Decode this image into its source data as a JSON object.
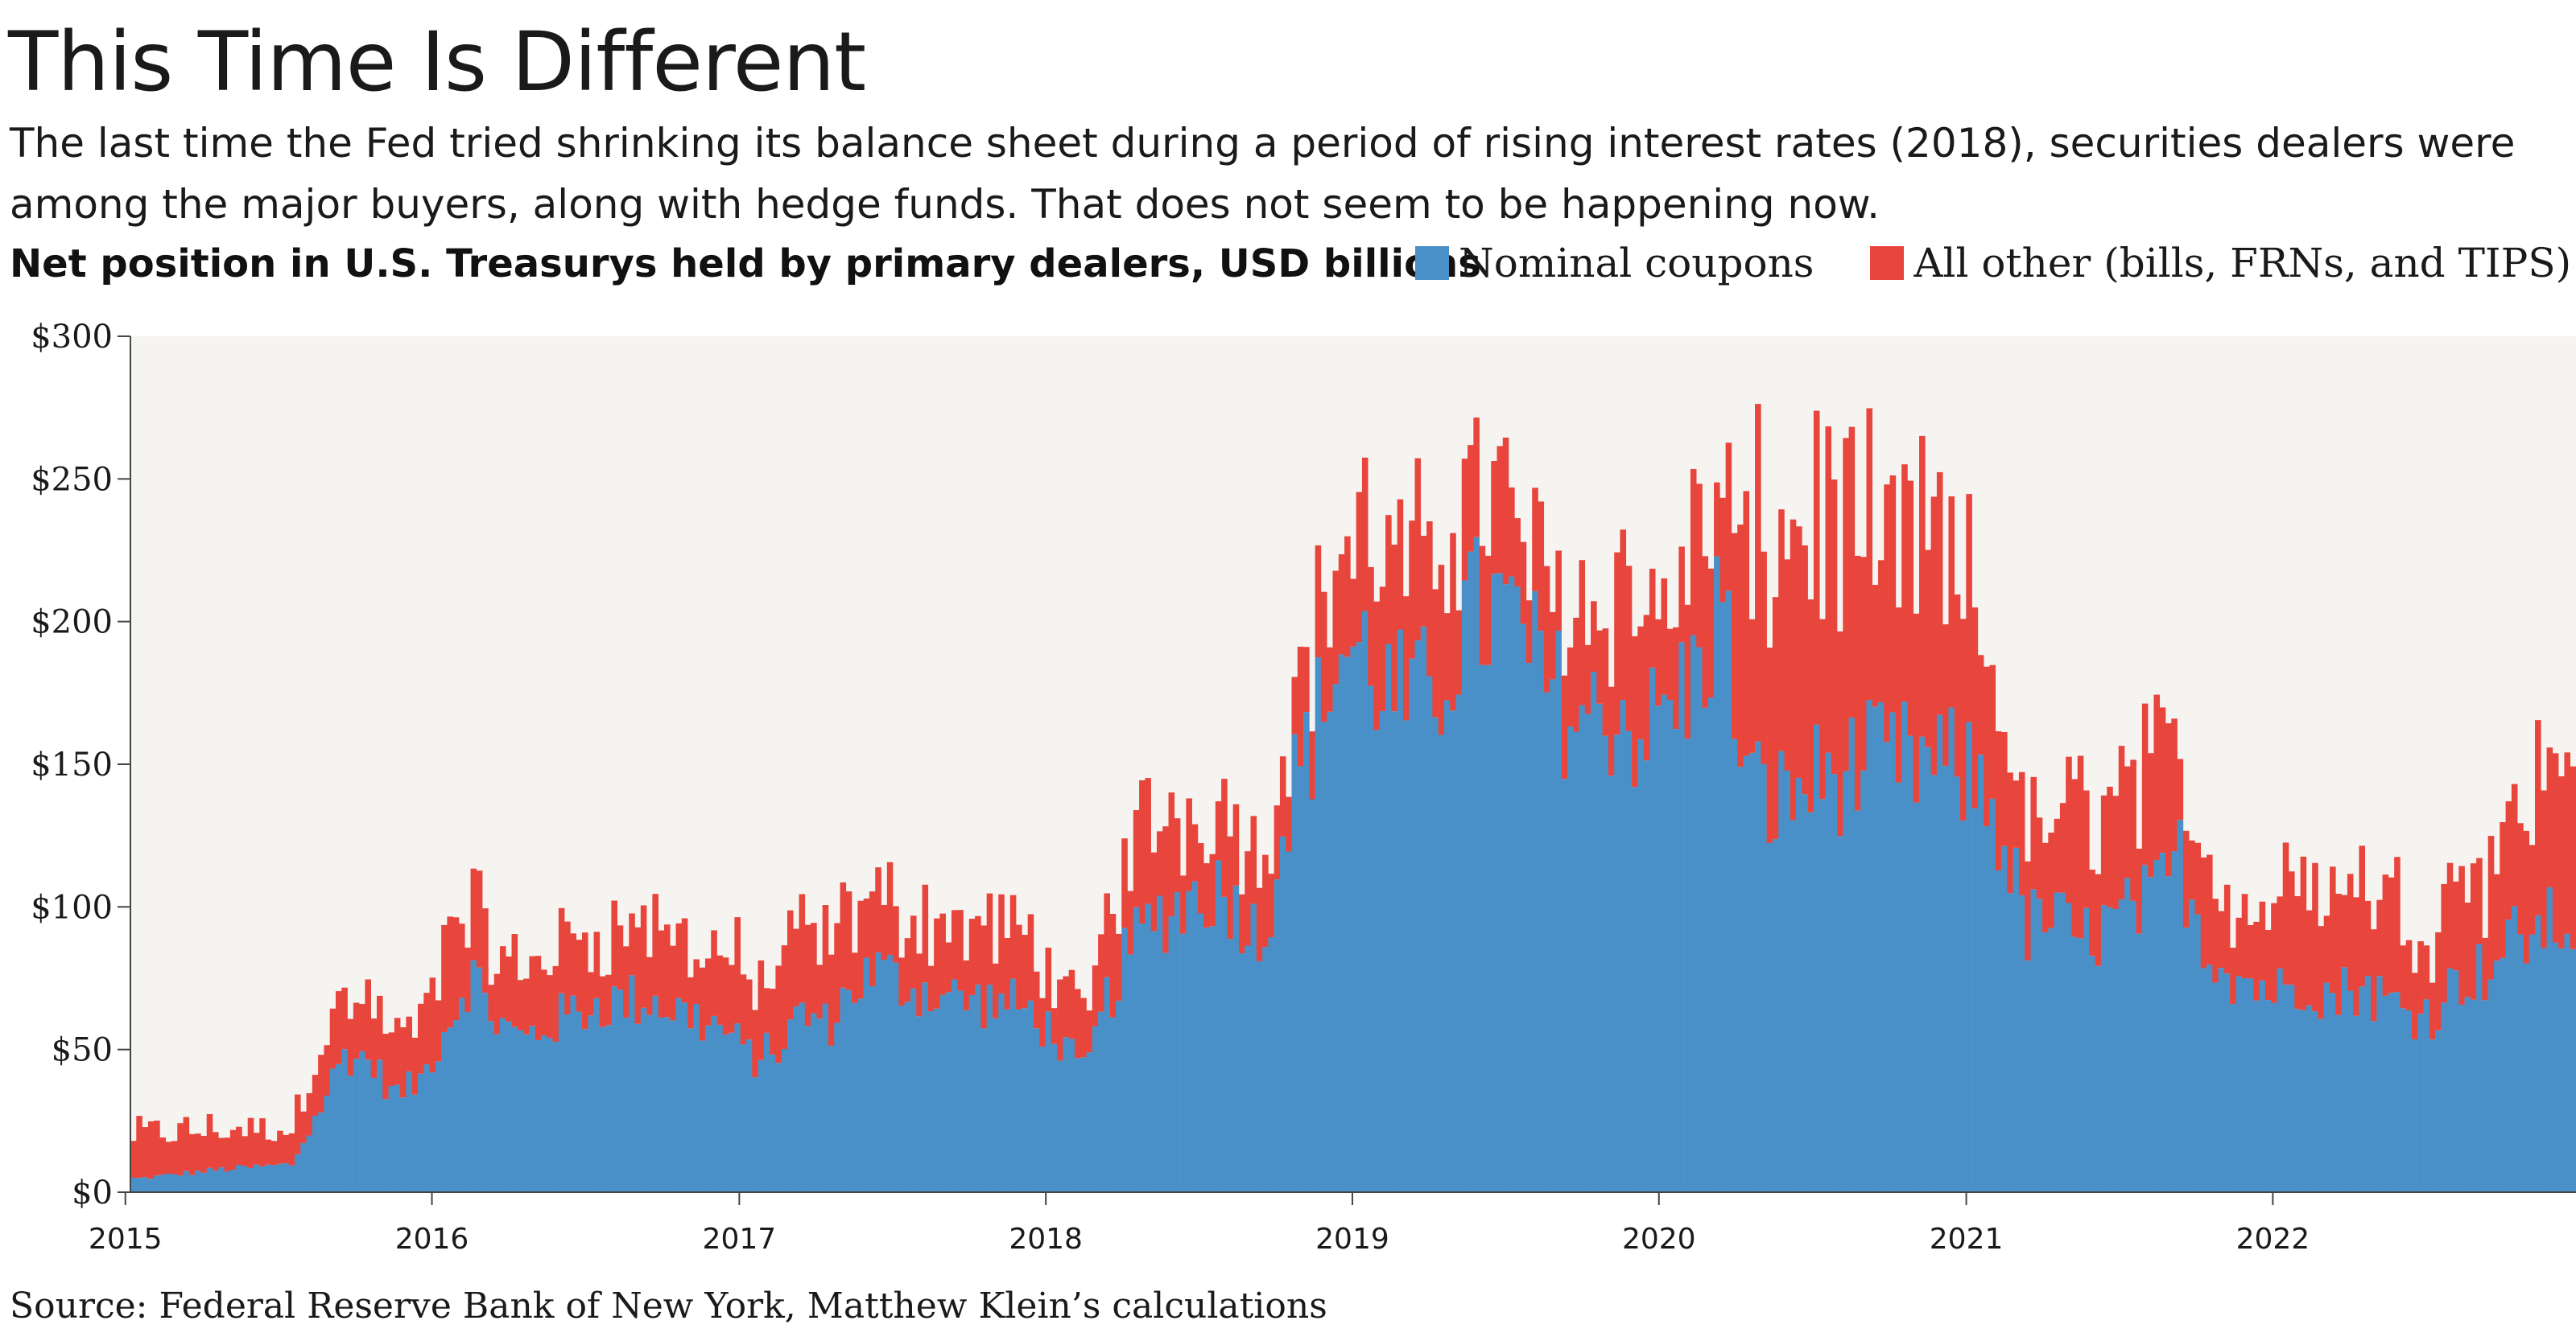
{
  "title": "This Time Is Different",
  "subtitle": "The last time the Fed tried shrinking its balance sheet during a period of rising interest rates (2018), securities dealers were among the major buyers, along with hedge funds. That does not seem to be happening now.",
  "chart_label": "Net position in U.S. Treasurys held by primary dealers, USD billions",
  "source": "Source: Federal Reserve Bank of New York, Matthew Klein’s calculations",
  "colors": {
    "nominal": "#4a90c8",
    "other": "#e8453c",
    "plot_bg": "#f6f4f1"
  },
  "chart_data": {
    "type": "bar",
    "stacked": true,
    "frequency": "weekly",
    "x_start": "2015-01-07",
    "x_end": "2022-12-28",
    "ylim": [
      0,
      300
    ],
    "yticks": [
      0,
      50,
      100,
      150,
      200,
      250,
      300
    ],
    "ytick_labels": [
      "$0",
      "$50",
      "$100",
      "$150",
      "$200",
      "$250",
      "$300"
    ],
    "xtick_labels": [
      "2015",
      "2016",
      "2017",
      "2018",
      "2019",
      "2020",
      "2021",
      "2022"
    ],
    "legend_position": "top",
    "series": [
      {
        "name": "Nominal coupons",
        "anchors": [
          [
            "2015-01",
            5
          ],
          [
            "2015-04",
            8
          ],
          [
            "2015-07",
            10
          ],
          [
            "2015-08",
            28
          ],
          [
            "2015-09",
            50
          ],
          [
            "2015-10",
            48
          ],
          [
            "2015-11",
            35
          ],
          [
            "2015-12",
            40
          ],
          [
            "2016-01",
            60
          ],
          [
            "2016-02",
            80
          ],
          [
            "2016-03",
            62
          ],
          [
            "2016-04",
            55
          ],
          [
            "2016-05",
            60
          ],
          [
            "2016-06",
            65
          ],
          [
            "2016-07",
            68
          ],
          [
            "2016-09",
            70
          ],
          [
            "2016-11",
            62
          ],
          [
            "2016-12",
            58
          ],
          [
            "2017-01",
            48
          ],
          [
            "2017-02",
            52
          ],
          [
            "2017-03",
            65
          ],
          [
            "2017-04",
            60
          ],
          [
            "2017-05",
            75
          ],
          [
            "2017-06",
            80
          ],
          [
            "2017-07",
            75
          ],
          [
            "2017-09",
            70
          ],
          [
            "2017-11",
            68
          ],
          [
            "2017-12",
            65
          ],
          [
            "2018-01",
            55
          ],
          [
            "2018-02",
            42
          ],
          [
            "2018-03",
            70
          ],
          [
            "2018-04",
            90
          ],
          [
            "2018-05",
            100
          ],
          [
            "2018-06",
            105
          ],
          [
            "2018-07",
            110
          ],
          [
            "2018-08",
            105
          ],
          [
            "2018-09",
            90
          ],
          [
            "2018-10",
            140
          ],
          [
            "2018-11",
            165
          ],
          [
            "2018-12",
            195
          ],
          [
            "2019-01",
            195
          ],
          [
            "2019-02",
            180
          ],
          [
            "2019-03",
            175
          ],
          [
            "2019-04",
            185
          ],
          [
            "2019-05",
            205
          ],
          [
            "2019-06",
            210
          ],
          [
            "2019-07",
            205
          ],
          [
            "2019-08",
            185
          ],
          [
            "2019-09",
            175
          ],
          [
            "2019-10",
            170
          ],
          [
            "2019-11",
            175
          ],
          [
            "2019-12",
            165
          ],
          [
            "2020-01",
            175
          ],
          [
            "2020-02",
            185
          ],
          [
            "2020-03",
            215
          ],
          [
            "2020-04",
            150
          ],
          [
            "2020-05",
            140
          ],
          [
            "2020-07",
            150
          ],
          [
            "2020-09",
            155
          ],
          [
            "2020-11",
            155
          ],
          [
            "2021-01",
            150
          ],
          [
            "2021-02",
            130
          ],
          [
            "2021-03",
            95
          ],
          [
            "2021-04",
            100
          ],
          [
            "2021-05",
            90
          ],
          [
            "2021-06",
            95
          ],
          [
            "2021-07",
            100
          ],
          [
            "2021-08",
            105
          ],
          [
            "2021-09",
            120
          ],
          [
            "2021-10",
            90
          ],
          [
            "2021-11",
            80
          ],
          [
            "2021-12",
            75
          ],
          [
            "2022-01",
            72
          ],
          [
            "2022-02",
            78
          ],
          [
            "2022-03",
            70
          ],
          [
            "2022-04",
            75
          ],
          [
            "2022-05",
            70
          ],
          [
            "2022-06",
            65
          ],
          [
            "2022-07",
            65
          ],
          [
            "2022-08",
            78
          ],
          [
            "2022-09",
            80
          ],
          [
            "2022-10",
            90
          ],
          [
            "2022-11",
            95
          ],
          [
            "2022-12",
            97
          ]
        ]
      },
      {
        "name": "All other (bills, FRNs, and TIPS)",
        "anchors": [
          [
            "2015-01",
            15
          ],
          [
            "2015-04",
            14
          ],
          [
            "2015-07",
            12
          ],
          [
            "2015-08",
            25
          ],
          [
            "2015-09",
            18
          ],
          [
            "2015-10",
            20
          ],
          [
            "2015-11",
            20
          ],
          [
            "2015-12",
            18
          ],
          [
            "2016-01",
            30
          ],
          [
            "2016-02",
            25
          ],
          [
            "2016-03",
            20
          ],
          [
            "2016-04",
            25
          ],
          [
            "2016-05",
            25
          ],
          [
            "2016-06",
            25
          ],
          [
            "2016-07",
            25
          ],
          [
            "2016-09",
            25
          ],
          [
            "2016-11",
            25
          ],
          [
            "2016-12",
            28
          ],
          [
            "2017-01",
            25
          ],
          [
            "2017-02",
            25
          ],
          [
            "2017-03",
            28
          ],
          [
            "2017-04",
            28
          ],
          [
            "2017-05",
            25
          ],
          [
            "2017-06",
            25
          ],
          [
            "2017-07",
            25
          ],
          [
            "2017-09",
            25
          ],
          [
            "2017-11",
            25
          ],
          [
            "2017-12",
            25
          ],
          [
            "2018-01",
            20
          ],
          [
            "2018-02",
            18
          ],
          [
            "2018-03",
            30
          ],
          [
            "2018-04",
            35
          ],
          [
            "2018-05",
            35
          ],
          [
            "2018-06",
            30
          ],
          [
            "2018-07",
            30
          ],
          [
            "2018-08",
            30
          ],
          [
            "2018-09",
            25
          ],
          [
            "2018-10",
            30
          ],
          [
            "2018-11",
            30
          ],
          [
            "2018-12",
            35
          ],
          [
            "2019-01",
            40
          ],
          [
            "2019-02",
            45
          ],
          [
            "2019-03",
            45
          ],
          [
            "2019-04",
            45
          ],
          [
            "2019-05",
            50
          ],
          [
            "2019-06",
            40
          ],
          [
            "2019-07",
            35
          ],
          [
            "2019-08",
            35
          ],
          [
            "2019-09",
            40
          ],
          [
            "2019-10",
            40
          ],
          [
            "2019-11",
            45
          ],
          [
            "2019-12",
            40
          ],
          [
            "2020-01",
            40
          ],
          [
            "2020-02",
            45
          ],
          [
            "2020-03",
            35
          ],
          [
            "2020-04",
            70
          ],
          [
            "2020-05",
            95
          ],
          [
            "2020-07",
            90
          ],
          [
            "2020-09",
            70
          ],
          [
            "2020-11",
            75
          ],
          [
            "2021-01",
            55
          ],
          [
            "2021-02",
            45
          ],
          [
            "2021-03",
            30
          ],
          [
            "2021-04",
            35
          ],
          [
            "2021-05",
            45
          ],
          [
            "2021-06",
            45
          ],
          [
            "2021-07",
            50
          ],
          [
            "2021-08",
            45
          ],
          [
            "2021-09",
            35
          ],
          [
            "2021-10",
            30
          ],
          [
            "2021-11",
            25
          ],
          [
            "2021-12",
            25
          ],
          [
            "2022-01",
            35
          ],
          [
            "2022-02",
            40
          ],
          [
            "2022-03",
            35
          ],
          [
            "2022-04",
            38
          ],
          [
            "2022-05",
            35
          ],
          [
            "2022-06",
            35
          ],
          [
            "2022-07",
            30
          ],
          [
            "2022-08",
            40
          ],
          [
            "2022-09",
            35
          ],
          [
            "2022-10",
            45
          ],
          [
            "2022-11",
            50
          ],
          [
            "2022-12",
            55
          ]
        ]
      }
    ]
  }
}
